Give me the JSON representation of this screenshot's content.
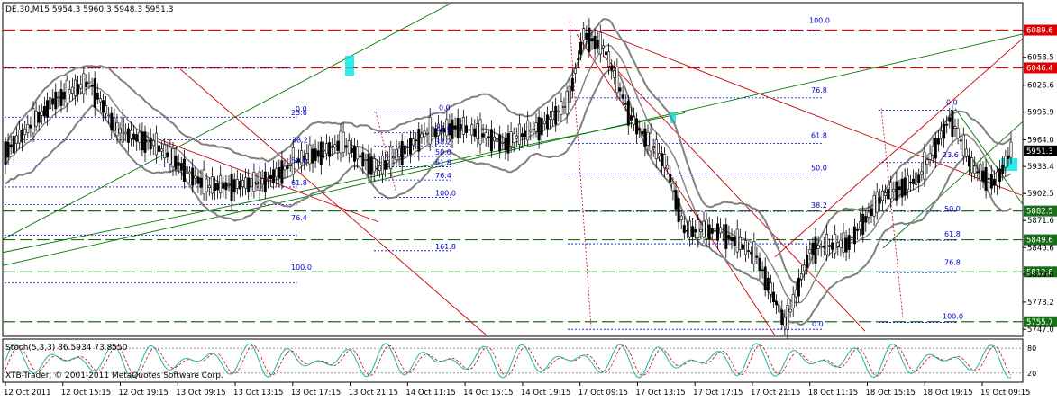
{
  "main_header": "DE.30,M15  5954.3 5960.3 5948.3 5951.3",
  "stoch_header": "Stoch(5,3,3) 86.5934 73.8550",
  "watermark": "XTB-Trader, © 2001-2011 MetaQuotes Software Corp.",
  "colors": {
    "background": "#ffffff",
    "candle_up": "#ffffff",
    "candle_outline": "#000000",
    "bollinger": "#808080",
    "grid": "#c0c0c0",
    "fib": "#0000cc",
    "red_line": "#cc0000",
    "green_line": "#007700",
    "price_tag_red": "#dd0000",
    "price_tag_green": "#1a6e1a",
    "current_price_bg": "#000000",
    "stoch_main": "#20b2aa",
    "stoch_signal": "#cc0000"
  },
  "chart_data": {
    "type": "candlestick",
    "symbol": "DE.30",
    "timeframe": "M15",
    "ohlc_last": {
      "open": 5954.3,
      "high": 5960.3,
      "low": 5948.3,
      "close": 5951.3
    },
    "ylim": [
      5740,
      6120
    ],
    "y_ticks": [
      6058.5,
      6026.6,
      5995.9,
      5964.0,
      5933.4,
      5902.5,
      5871.6,
      5840.6,
      5809.8,
      5778.2,
      5747.0
    ],
    "x_ticks": [
      "12 Oct 2011",
      "12 Oct 15:15",
      "12 Oct 19:15",
      "13 Oct 09:15",
      "13 Oct 13:15",
      "13 Oct 17:15",
      "13 Oct 21:15",
      "14 Oct 11:15",
      "14 Oct 15:15",
      "14 Oct 19:15",
      "17 Oct 09:15",
      "17 Oct 13:15",
      "17 Oct 17:15",
      "17 Oct 21:15",
      "18 Oct 11:15",
      "18 Oct 15:15",
      "18 Oct 19:15",
      "19 Oct 09:15"
    ],
    "horizontal_levels": [
      {
        "value": 6089.6,
        "label": "6089.6",
        "style": "red"
      },
      {
        "value": 6046.4,
        "label": "6046.4",
        "style": "red"
      },
      {
        "value": 5951.3,
        "label": "5951.3",
        "style": "current"
      },
      {
        "value": 5882.5,
        "label": "5882.5",
        "style": "green"
      },
      {
        "value": 5849.6,
        "label": "5849.6",
        "style": "green"
      },
      {
        "value": 5812.8,
        "label": "5812.8",
        "style": "green"
      },
      {
        "value": 5755.7,
        "label": "5755.7",
        "style": "green"
      }
    ],
    "fib_labels": [
      {
        "text": "0.0",
        "x": 328,
        "y": 5994.5
      },
      {
        "text": "23.6",
        "x": 323,
        "y": 5990.0
      },
      {
        "text": "38.2",
        "x": 324,
        "y": 5959.0
      },
      {
        "text": "50.0",
        "x": 323,
        "y": 5935.0
      },
      {
        "text": "61.8",
        "x": 323,
        "y": 5910.0
      },
      {
        "text": "76.4",
        "x": 323,
        "y": 5870.0
      },
      {
        "text": "100.0",
        "x": 323,
        "y": 5813.0
      },
      {
        "text": "0.0",
        "x": 487,
        "y": 5996.0
      },
      {
        "text": "23.6",
        "x": 483,
        "y": 5972.0
      },
      {
        "text": "38.2",
        "x": 483,
        "y": 5957.0
      },
      {
        "text": "50.0",
        "x": 483,
        "y": 5945.0
      },
      {
        "text": "61.8",
        "x": 483,
        "y": 5933.0
      },
      {
        "text": "76.4",
        "x": 483,
        "y": 5918.0
      },
      {
        "text": "100.0",
        "x": 483,
        "y": 5898.0
      },
      {
        "text": "161.8",
        "x": 483,
        "y": 5837.0
      },
      {
        "text": "100.0",
        "x": 898,
        "y": 6096.0
      },
      {
        "text": "76.8",
        "x": 900,
        "y": 6016.0
      },
      {
        "text": "61.8",
        "x": 900,
        "y": 5964.0
      },
      {
        "text": "50.0",
        "x": 900,
        "y": 5927.0
      },
      {
        "text": "38.2",
        "x": 900,
        "y": 5884.0
      },
      {
        "text": "0.0",
        "x": 901,
        "y": 5748.0
      },
      {
        "text": "0.0",
        "x": 1050,
        "y": 6002.0
      },
      {
        "text": "23.6",
        "x": 1046,
        "y": 5942.0
      },
      {
        "text": "50.0",
        "x": 1048,
        "y": 5880.0
      },
      {
        "text": "61.8",
        "x": 1048,
        "y": 5851.0
      },
      {
        "text": "76.8",
        "x": 1048,
        "y": 5819.0
      },
      {
        "text": "100.0",
        "x": 1046,
        "y": 5757.0
      }
    ],
    "stoch": {
      "main": 86.5934,
      "signal": 73.855,
      "levels": [
        80,
        20
      ],
      "range": [
        0,
        100
      ]
    }
  }
}
